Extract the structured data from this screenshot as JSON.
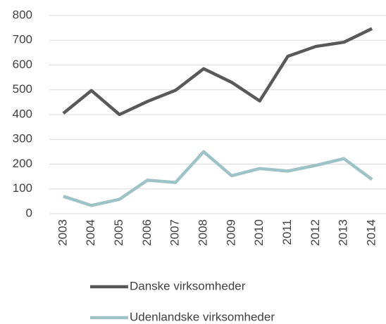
{
  "chart_data": {
    "type": "line",
    "categories": [
      "2003",
      "2004",
      "2005",
      "2006",
      "2007",
      "2008",
      "2009",
      "2010",
      "2011",
      "2012",
      "2013",
      "2014"
    ],
    "series": [
      {
        "name": "Danske virksomheder",
        "color": "#595959",
        "values": [
          405,
          497,
          400,
          453,
          498,
          585,
          530,
          455,
          635,
          675,
          692,
          747
        ]
      },
      {
        "name": "Udenlandske virksomheder",
        "color": "#9dc3c6",
        "values": [
          70,
          33,
          58,
          135,
          126,
          250,
          153,
          182,
          172,
          195,
          222,
          138
        ]
      }
    ],
    "ylim": [
      0,
      800
    ],
    "yticks": [
      0,
      100,
      200,
      300,
      400,
      500,
      600,
      700,
      800
    ],
    "grid": true
  }
}
